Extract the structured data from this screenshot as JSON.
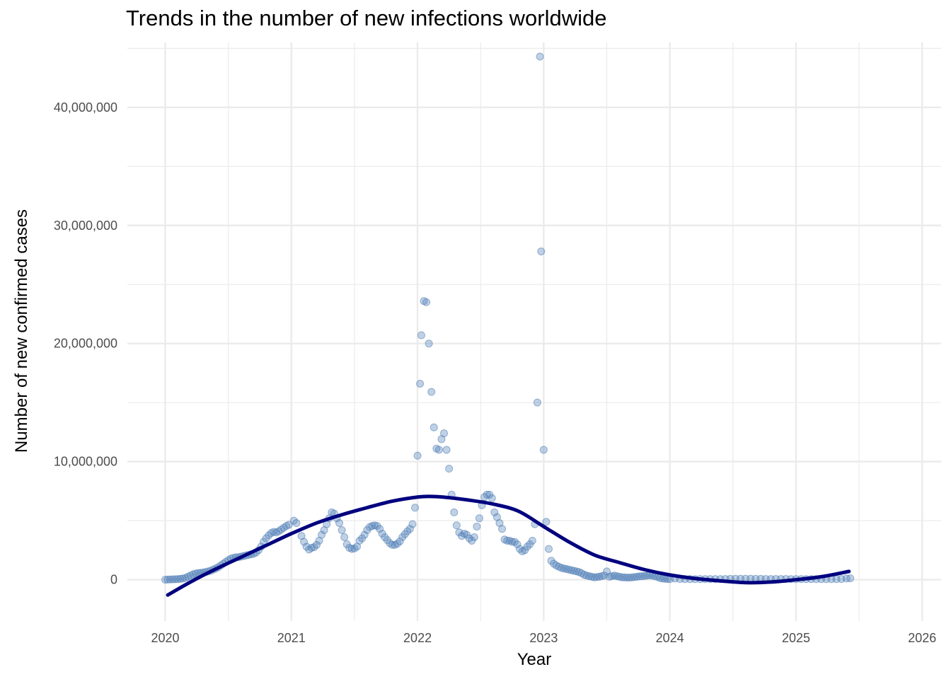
{
  "chart_data": {
    "type": "scatter",
    "title": "Trends in the number of new infections worldwide",
    "xlabel": "Year",
    "ylabel": "Number of new confirmed cases",
    "xlim": [
      2019.7,
      2026.15
    ],
    "ylim": [
      -3500000,
      45500000
    ],
    "x_ticks": [
      "2020",
      "2021",
      "2022",
      "2023",
      "2024",
      "2025",
      "2026"
    ],
    "x_tick_values": [
      2020,
      2021,
      2022,
      2023,
      2024,
      2025,
      2026
    ],
    "y_ticks": [
      "0",
      "10,000,000",
      "20,000,000",
      "30,000,000",
      "40,000,000"
    ],
    "y_tick_values": [
      0,
      10000000,
      20000000,
      30000000,
      40000000
    ],
    "grid": true,
    "legend": "none",
    "colors": {
      "points": "#4a7ab5",
      "trend": "#00007f",
      "grid": "#ebebeb",
      "background": "#ffffff"
    },
    "series": [
      {
        "kind": "points",
        "x": [
          2020.0,
          2020.02,
          2020.04,
          2020.06,
          2020.08,
          2020.1,
          2020.12,
          2020.14,
          2020.16,
          2020.18,
          2020.2,
          2020.22,
          2020.24,
          2020.26,
          2020.28,
          2020.3,
          2020.32,
          2020.34,
          2020.36,
          2020.38,
          2020.4,
          2020.42,
          2020.44,
          2020.46,
          2020.48,
          2020.5,
          2020.52,
          2020.54,
          2020.56,
          2020.58,
          2020.6,
          2020.62,
          2020.64,
          2020.66,
          2020.68,
          2020.7,
          2020.72,
          2020.74,
          2020.76,
          2020.78,
          2020.8,
          2020.82,
          2020.84,
          2020.86,
          2020.88,
          2020.9,
          2020.92,
          2020.94,
          2020.96,
          2020.98,
          2021.02,
          2021.04,
          2021.08,
          2021.1,
          2021.12,
          2021.14,
          2021.16,
          2021.18,
          2021.2,
          2021.22,
          2021.24,
          2021.26,
          2021.28,
          2021.3,
          2021.32,
          2021.34,
          2021.36,
          2021.38,
          2021.4,
          2021.42,
          2021.44,
          2021.46,
          2021.48,
          2021.5,
          2021.52,
          2021.54,
          2021.56,
          2021.58,
          2021.6,
          2021.62,
          2021.64,
          2021.66,
          2021.68,
          2021.7,
          2021.72,
          2021.74,
          2021.76,
          2021.78,
          2021.8,
          2021.82,
          2021.84,
          2021.86,
          2021.88,
          2021.9,
          2021.92,
          2021.94,
          2021.96,
          2021.98,
          2022.0,
          2022.02,
          2022.03,
          2022.05,
          2022.07,
          2022.09,
          2022.11,
          2022.13,
          2022.15,
          2022.17,
          2022.19,
          2022.21,
          2022.23,
          2022.25,
          2022.27,
          2022.29,
          2022.31,
          2022.33,
          2022.35,
          2022.37,
          2022.39,
          2022.41,
          2022.43,
          2022.45,
          2022.47,
          2022.49,
          2022.51,
          2022.53,
          2022.55,
          2022.57,
          2022.59,
          2022.61,
          2022.63,
          2022.65,
          2022.67,
          2022.69,
          2022.71,
          2022.73,
          2022.75,
          2022.77,
          2022.79,
          2022.81,
          2022.83,
          2022.85,
          2022.87,
          2022.89,
          2022.91,
          2022.93,
          2022.95,
          2022.97,
          2022.98,
          2023.0,
          2023.02,
          2023.04,
          2023.06,
          2023.08,
          2023.1,
          2023.12,
          2023.14,
          2023.16,
          2023.18,
          2023.2,
          2023.22,
          2023.24,
          2023.26,
          2023.28,
          2023.3,
          2023.32,
          2023.34,
          2023.36,
          2023.38,
          2023.4,
          2023.42,
          2023.44,
          2023.46,
          2023.48,
          2023.5,
          2023.52,
          2023.54,
          2023.56,
          2023.58,
          2023.6,
          2023.62,
          2023.64,
          2023.66,
          2023.68,
          2023.7,
          2023.72,
          2023.74,
          2023.76,
          2023.78,
          2023.8,
          2023.82,
          2023.84,
          2023.86,
          2023.88,
          2023.9,
          2023.92,
          2023.94,
          2023.96,
          2023.98,
          2024.0,
          2024.04,
          2024.08,
          2024.12,
          2024.16,
          2024.2,
          2024.24,
          2024.28,
          2024.32,
          2024.36,
          2024.4,
          2024.44,
          2024.48,
          2024.52,
          2024.56,
          2024.6,
          2024.64,
          2024.68,
          2024.72,
          2024.76,
          2024.8,
          2024.84,
          2024.88,
          2024.92,
          2024.96,
          2025.0,
          2025.04,
          2025.08,
          2025.12,
          2025.16,
          2025.2,
          2025.24,
          2025.28,
          2025.32,
          2025.36,
          2025.4,
          2025.43
        ],
        "y": [
          0,
          10000,
          20000,
          30000,
          40000,
          50000,
          70000,
          100000,
          150000,
          250000,
          350000,
          450000,
          520000,
          560000,
          580000,
          600000,
          650000,
          700000,
          760000,
          850000,
          950000,
          1050000,
          1200000,
          1350000,
          1500000,
          1650000,
          1780000,
          1850000,
          1900000,
          1900000,
          1950000,
          2000000,
          2050000,
          2100000,
          2150000,
          2200000,
          2300000,
          2500000,
          2800000,
          3200000,
          3500000,
          3750000,
          3950000,
          4050000,
          4000000,
          4100000,
          4250000,
          4400000,
          4550000,
          4650000,
          5000000,
          4800000,
          3700000,
          3200000,
          2800000,
          2550000,
          2700000,
          2750000,
          2950000,
          3300000,
          3800000,
          4200000,
          4700000,
          5200000,
          5700000,
          5600000,
          5200000,
          4800000,
          4200000,
          3600000,
          3000000,
          2700000,
          2600000,
          2650000,
          2800000,
          3300000,
          3500000,
          3800000,
          4200000,
          4450000,
          4550000,
          4600000,
          4550000,
          4300000,
          3900000,
          3600000,
          3350000,
          3100000,
          2950000,
          2950000,
          3050000,
          3250000,
          3600000,
          3850000,
          4100000,
          4300000,
          4700000,
          6100000,
          10500000,
          16600000,
          20700000,
          23600000,
          23500000,
          20000000,
          15900000,
          12900000,
          11100000,
          11000000,
          11900000,
          12400000,
          11000000,
          9400000,
          7200000,
          5700000,
          4600000,
          4000000,
          3700000,
          3900000,
          3800000,
          3500000,
          3300000,
          3600000,
          4500000,
          5200000,
          6300000,
          7000000,
          7200000,
          7200000,
          6900000,
          5700000,
          5300000,
          4800000,
          4300000,
          3400000,
          3300000,
          3300000,
          3200000,
          3200000,
          3000000,
          2600000,
          2400000,
          2500000,
          2800000,
          3000000,
          3300000,
          4700000,
          15000000,
          44300000,
          27800000,
          11000000,
          4900000,
          2600000,
          1600000,
          1350000,
          1200000,
          1100000,
          1000000,
          950000,
          900000,
          850000,
          800000,
          750000,
          700000,
          650000,
          550000,
          420000,
          350000,
          300000,
          250000,
          200000,
          220000,
          250000,
          300000,
          350000,
          700000,
          250000,
          300000,
          350000,
          300000,
          250000,
          200000,
          200000,
          180000,
          180000,
          200000,
          220000,
          250000,
          280000,
          300000,
          320000,
          350000,
          380000,
          350000,
          300000,
          250000,
          150000,
          100000,
          80000,
          60000,
          50000,
          100000,
          60000,
          50000,
          50000,
          50000,
          50000,
          50000,
          50000,
          50000,
          50000,
          60000,
          70000,
          80000,
          80000,
          80000,
          80000,
          70000,
          70000,
          60000,
          60000,
          60000,
          60000,
          60000,
          50000,
          50000,
          50000,
          50000,
          50000,
          50000,
          50000,
          50000,
          50000,
          50000,
          60000,
          100000,
          120000
        ]
      },
      {
        "kind": "trend",
        "x": [
          2020.02,
          2020.2,
          2020.4,
          2020.6,
          2020.8,
          2021.0,
          2021.2,
          2021.4,
          2021.6,
          2021.8,
          2022.0,
          2022.1,
          2022.2,
          2022.4,
          2022.6,
          2022.8,
          2023.0,
          2023.2,
          2023.4,
          2023.6,
          2023.8,
          2024.0,
          2024.2,
          2024.4,
          2024.6,
          2024.8,
          2025.0,
          2025.2,
          2025.42
        ],
        "y": [
          -1300000,
          -200000,
          900000,
          1900000,
          2900000,
          3900000,
          4800000,
          5500000,
          6100000,
          6650000,
          7000000,
          7050000,
          7000000,
          6750000,
          6400000,
          5800000,
          4500000,
          3200000,
          2100000,
          1450000,
          850000,
          400000,
          100000,
          -100000,
          -250000,
          -200000,
          0,
          250000,
          700000
        ]
      }
    ]
  }
}
